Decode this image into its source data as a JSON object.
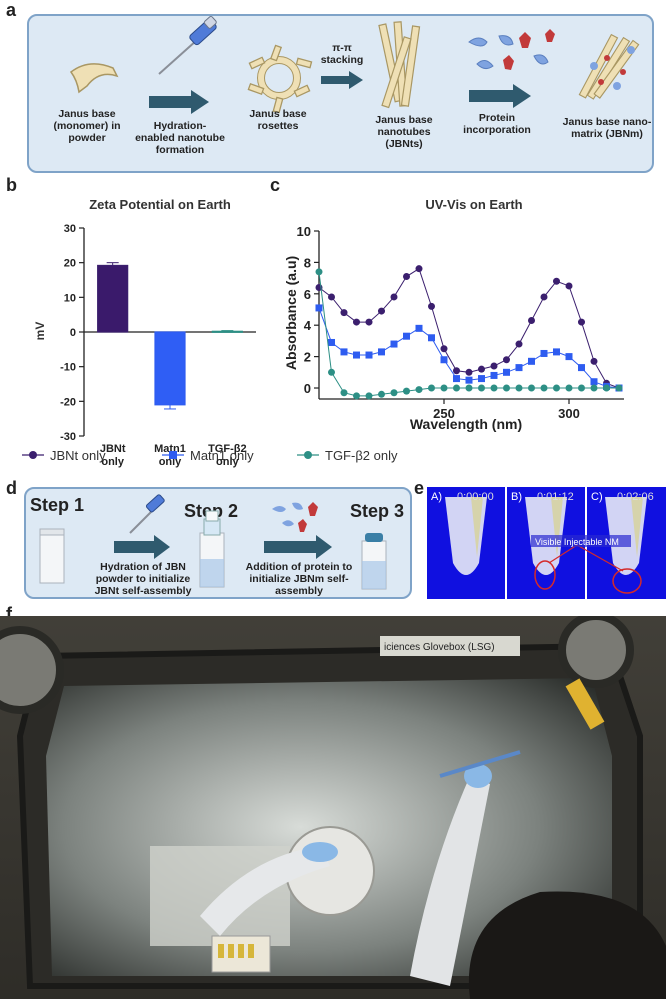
{
  "panel_labels": {
    "a": "a",
    "b": "b",
    "c": "c",
    "d": "d",
    "e": "e",
    "f": "f"
  },
  "panel_a": {
    "step1": "Janus base (monomer) in powder",
    "step2": "Hydration-enabled nanotube formation",
    "step3": "Janus base rosettes",
    "arrow3": "π-π stacking",
    "step4": "Janus base nanotubes (JBNts)",
    "step5": "Protein incorporation",
    "step6": "Janus base nano-matrix (JBNm)"
  },
  "panel_d": {
    "step1": "Step 1",
    "step2": "Step 2",
    "step3": "Step 3",
    "desc1": "Hydration of JBN powder to initialize JBNt self-assembly",
    "desc2": "Addition of protein to initialize JBNm self-assembly"
  },
  "panel_e": {
    "frame_labels": [
      "A)",
      "B)",
      "C)"
    ],
    "timestamps": [
      "0:00:00",
      "0:01:12",
      "0:02:06"
    ],
    "annotation": "Visible Injectable NM"
  },
  "panel_f": {
    "glovebox_label": "iciences Glovebox (LSG)"
  },
  "chart_data": [
    {
      "type": "bar",
      "title": "Zeta Potential on Earth",
      "ylabel": "mV",
      "xlabel": "",
      "categories": [
        "JBNt only",
        "Matn1 only",
        "TGF-β2 only"
      ],
      "values": [
        19.2,
        -21,
        0.2
      ],
      "errors": [
        0.8,
        1.2,
        0.2
      ],
      "colors": [
        "#3b1f6e",
        "#2e5cf0",
        "#2d8f85"
      ],
      "fills": [
        "#3a1a6b",
        "#2f5ef5",
        "#3aa39a"
      ],
      "ylim": [
        -30,
        30
      ],
      "yticks": [
        -30,
        -20,
        -10,
        0,
        10,
        20,
        30
      ]
    },
    {
      "type": "line",
      "title": "UV-Vis on Earth",
      "xlabel": "Wavelength (nm)",
      "ylabel": "Absorbance (a.u)",
      "xlim": [
        200,
        322
      ],
      "ylim": [
        -0.7,
        10
      ],
      "xticks": [
        250,
        300
      ],
      "yticks": [
        0,
        2,
        4,
        6,
        8,
        10
      ],
      "series": [
        {
          "name": "JBNt only",
          "color": "#3b1f6e",
          "marker": "circle",
          "x": [
            200,
            205,
            210,
            215,
            220,
            225,
            230,
            235,
            240,
            245,
            250,
            255,
            260,
            265,
            270,
            275,
            280,
            285,
            290,
            295,
            300,
            305,
            310,
            315,
            320
          ],
          "y": [
            6.4,
            5.8,
            4.8,
            4.2,
            4.2,
            4.9,
            5.8,
            7.1,
            7.6,
            5.2,
            2.5,
            1.1,
            1.0,
            1.2,
            1.4,
            1.8,
            2.8,
            4.3,
            5.8,
            6.8,
            6.5,
            4.2,
            1.7,
            0.3,
            0.0
          ]
        },
        {
          "name": "Matn1 only",
          "color": "#2e5cf0",
          "marker": "square",
          "x": [
            200,
            205,
            210,
            215,
            220,
            225,
            230,
            235,
            240,
            245,
            250,
            255,
            260,
            265,
            270,
            275,
            280,
            285,
            290,
            295,
            300,
            305,
            310,
            315,
            320
          ],
          "y": [
            5.1,
            2.9,
            2.3,
            2.1,
            2.1,
            2.3,
            2.8,
            3.3,
            3.8,
            3.2,
            1.8,
            0.6,
            0.5,
            0.6,
            0.8,
            1.0,
            1.3,
            1.7,
            2.2,
            2.3,
            2.0,
            1.3,
            0.4,
            0.1,
            0.0
          ]
        },
        {
          "name": "TGF-β2 only",
          "color": "#2d8f85",
          "marker": "circle",
          "x": [
            200,
            205,
            210,
            215,
            220,
            225,
            230,
            235,
            240,
            245,
            250,
            255,
            260,
            265,
            270,
            275,
            280,
            285,
            290,
            295,
            300,
            305,
            310,
            315,
            320
          ],
          "y": [
            7.4,
            1.0,
            -0.3,
            -0.5,
            -0.5,
            -0.4,
            -0.3,
            -0.2,
            -0.1,
            0.0,
            0.0,
            0.0,
            0.0,
            0.0,
            0.0,
            0.0,
            0.0,
            0.0,
            0.0,
            0.0,
            0.0,
            0.0,
            0.0,
            0.0,
            0.0
          ]
        }
      ]
    }
  ]
}
